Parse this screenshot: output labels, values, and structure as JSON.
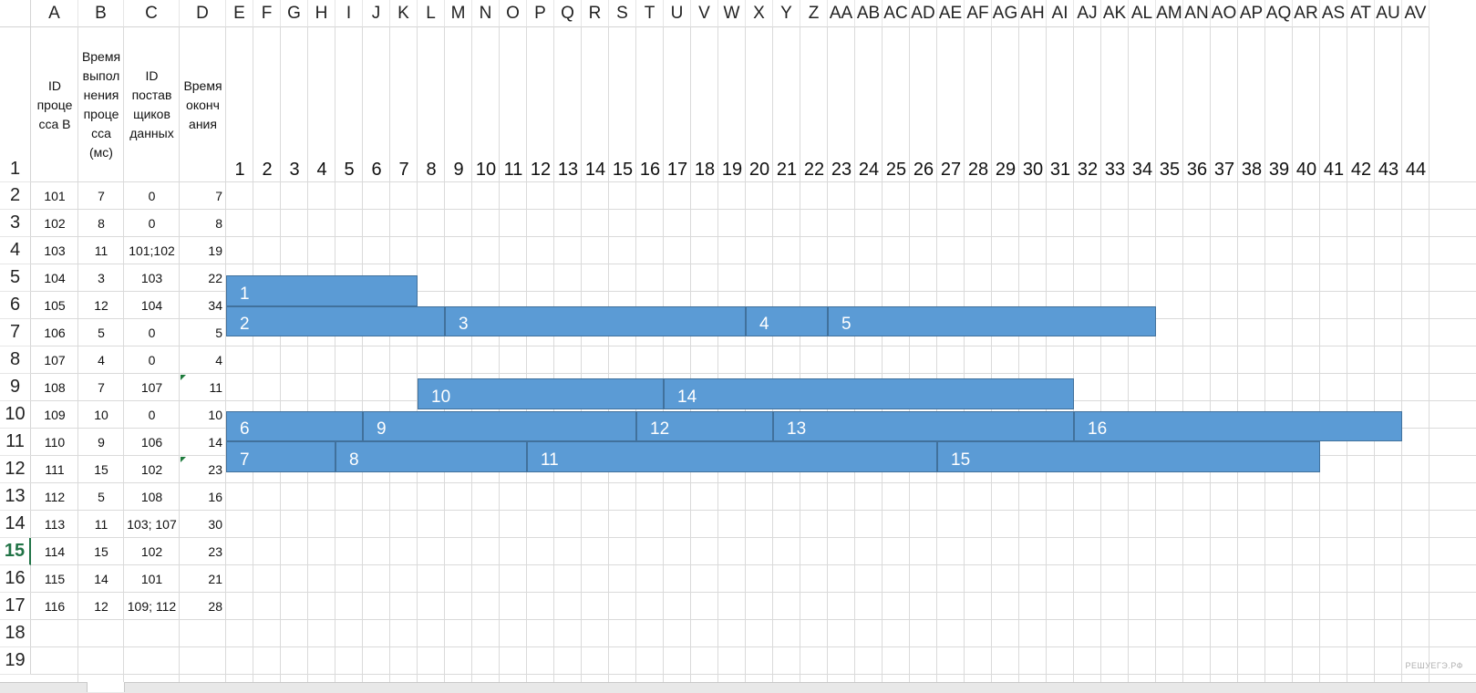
{
  "sheet": {
    "columns": [
      "A",
      "B",
      "C",
      "D",
      "E",
      "F",
      "G",
      "H",
      "I",
      "J",
      "K",
      "L",
      "M",
      "N",
      "O",
      "P",
      "Q",
      "R",
      "S",
      "T",
      "U",
      "V",
      "W",
      "X",
      "Y",
      "Z",
      "AA",
      "AB",
      "AC",
      "AD",
      "AE",
      "AF",
      "AG",
      "AH",
      "AI",
      "AJ",
      "AK",
      "AL",
      "AM",
      "AN",
      "AO",
      "AP",
      "AQ",
      "AR",
      "AS",
      "AT",
      "AU",
      "AV"
    ],
    "rows": [
      "1",
      "2",
      "3",
      "4",
      "5",
      "6",
      "7",
      "8",
      "9",
      "10",
      "11",
      "12",
      "13",
      "14",
      "15",
      "16",
      "17",
      "18",
      "19"
    ],
    "active_row": "15",
    "headers": {
      "a": "ID\nпроце\nсса В",
      "b": "Время\nвыпол\nнения\nпроце\nсса\n(мс)",
      "c": "ID\nпостав\nщиков\nданных",
      "d": "Время\nоконч\nания"
    },
    "timeline": [
      "1",
      "2",
      "3",
      "4",
      "5",
      "6",
      "7",
      "8",
      "9",
      "10",
      "11",
      "12",
      "13",
      "14",
      "15",
      "16",
      "17",
      "18",
      "19",
      "20",
      "21",
      "22",
      "23",
      "24",
      "25",
      "26",
      "27",
      "28",
      "29",
      "30",
      "31",
      "32",
      "33",
      "34",
      "35",
      "36",
      "37",
      "38",
      "39",
      "40",
      "41",
      "42",
      "43",
      "44"
    ],
    "data": [
      {
        "a": "101",
        "b": "7",
        "c": "0",
        "d": "7"
      },
      {
        "a": "102",
        "b": "8",
        "c": "0",
        "d": "8"
      },
      {
        "a": "103",
        "b": "11",
        "c": "101;102",
        "d": "19"
      },
      {
        "a": "104",
        "b": "3",
        "c": "103",
        "d": "22"
      },
      {
        "a": "105",
        "b": "12",
        "c": "104",
        "d": "34"
      },
      {
        "a": "106",
        "b": "5",
        "c": "0",
        "d": "5"
      },
      {
        "a": "107",
        "b": "4",
        "c": "0",
        "d": "4"
      },
      {
        "a": "108",
        "b": "7",
        "c": "107",
        "d": "11"
      },
      {
        "a": "109",
        "b": "10",
        "c": "0",
        "d": "10"
      },
      {
        "a": "110",
        "b": "9",
        "c": "106",
        "d": "14"
      },
      {
        "a": "111",
        "b": "15",
        "c": "102",
        "d": "23"
      },
      {
        "a": "112",
        "b": "5",
        "c": "108",
        "d": "16"
      },
      {
        "a": "113",
        "b": "11",
        "c": "103; 107",
        "d": "30"
      },
      {
        "a": "114",
        "b": "15",
        "c": "102",
        "d": "23"
      },
      {
        "a": "115",
        "b": "14",
        "c": "101",
        "d": "21"
      },
      {
        "a": "116",
        "b": "12",
        "c": "109; 112",
        "d": "28"
      }
    ],
    "bars": [
      {
        "label": "1",
        "start": 0,
        "end": 7,
        "lane": 0
      },
      {
        "label": "2",
        "start": 0,
        "end": 8,
        "lane": 1
      },
      {
        "label": "3",
        "start": 8,
        "end": 19,
        "lane": 1
      },
      {
        "label": "4",
        "start": 19,
        "end": 22,
        "lane": 1
      },
      {
        "label": "5",
        "start": 22,
        "end": 34,
        "lane": 1
      },
      {
        "label": "10",
        "start": 7,
        "end": 16,
        "lane": 2
      },
      {
        "label": "14",
        "start": 16,
        "end": 31,
        "lane": 2
      },
      {
        "label": "6",
        "start": 0,
        "end": 5,
        "lane": 3
      },
      {
        "label": "9",
        "start": 5,
        "end": 15,
        "lane": 3
      },
      {
        "label": "12",
        "start": 15,
        "end": 20,
        "lane": 3
      },
      {
        "label": "13",
        "start": 20,
        "end": 31,
        "lane": 3
      },
      {
        "label": "16",
        "start": 31,
        "end": 43,
        "lane": 3
      },
      {
        "label": "7",
        "start": 0,
        "end": 4,
        "lane": 4
      },
      {
        "label": "8",
        "start": 4,
        "end": 11,
        "lane": 4
      },
      {
        "label": "11",
        "start": 11,
        "end": 26,
        "lane": 4
      },
      {
        "label": "15",
        "start": 26,
        "end": 40,
        "lane": 4
      }
    ],
    "comment_marks": [
      {
        "row": "9"
      },
      {
        "row": "12"
      }
    ],
    "watermark": "РЕШУЕГЭ.РФ"
  },
  "colors": {
    "bar": "#5b9bd5",
    "bar_border": "#41719c",
    "active": "#217346",
    "grid": "#dadada"
  }
}
